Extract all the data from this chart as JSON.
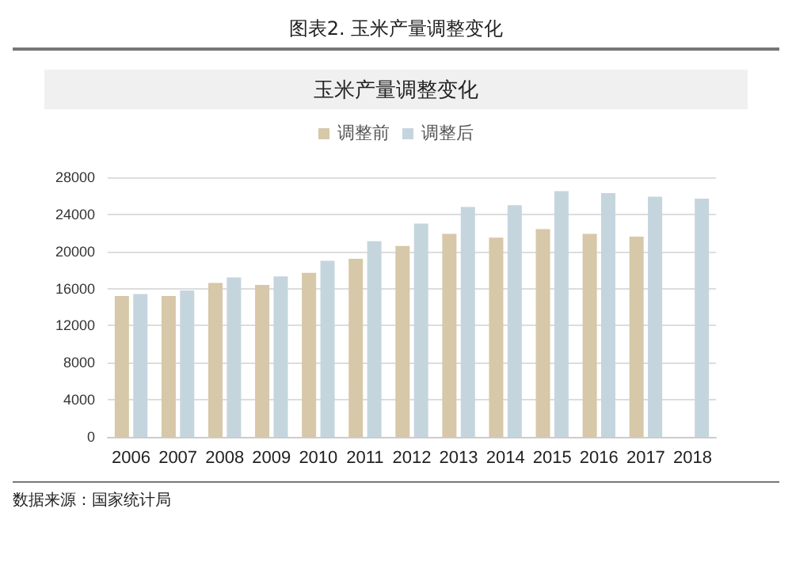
{
  "chart_data": {
    "type": "bar",
    "title": "图表2.   玉米产量调整变化",
    "subtitle": "玉米产量调整变化",
    "categories": [
      "2006",
      "2007",
      "2008",
      "2009",
      "2010",
      "2011",
      "2012",
      "2013",
      "2014",
      "2015",
      "2016",
      "2017",
      "2018"
    ],
    "series": [
      {
        "name": "调整前",
        "color": "#d6c8a8",
        "values": [
          15200,
          15200,
          16600,
          16400,
          17700,
          19200,
          20600,
          21900,
          21500,
          22400,
          21900,
          21600,
          null
        ]
      },
      {
        "name": "调整后",
        "color": "#c5d5de",
        "values": [
          15400,
          15800,
          17200,
          17300,
          19000,
          21100,
          23000,
          24800,
          25000,
          26500,
          26300,
          25900,
          25700
        ]
      }
    ],
    "ylim": [
      0,
      28000
    ],
    "yticks": [
      0,
      4000,
      8000,
      12000,
      16000,
      20000,
      24000,
      28000
    ],
    "grid": "y",
    "legend": "top",
    "annotations": [
      "数据来源：国家统计局"
    ]
  }
}
